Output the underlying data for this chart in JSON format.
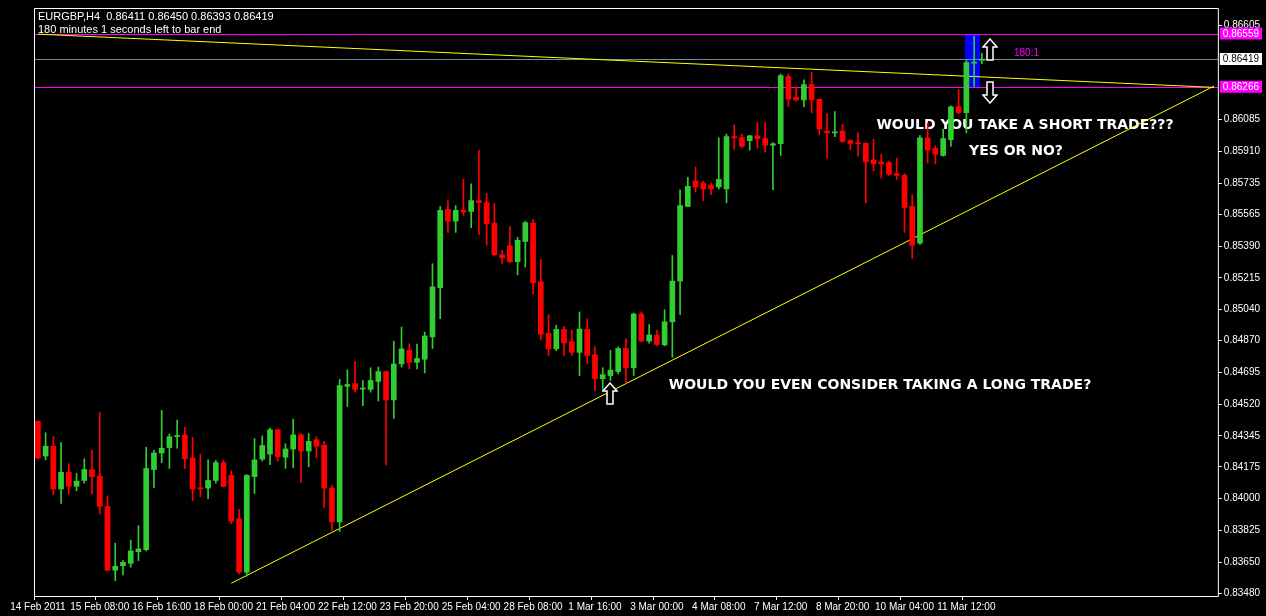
{
  "chart_data": {
    "type": "candlestick",
    "title": "EURGBP,H4  0.86411 0.86450 0.86393 0.86419",
    "subtitle": "180 minutes 1 seconds left to bar end",
    "categories": [
      "14 Feb 2011",
      null,
      null,
      null,
      null,
      null,
      null,
      null,
      "15 Feb 08:00",
      null,
      null,
      null,
      null,
      null,
      null,
      null,
      "16 Feb 16:00",
      null,
      null,
      null,
      null,
      null,
      null,
      null,
      "18 Feb 00:00",
      null,
      null,
      null,
      null,
      null,
      null,
      null,
      "21 Feb 04:00",
      null,
      null,
      null,
      null,
      null,
      null,
      null,
      "22 Feb 12:00",
      null,
      null,
      null,
      null,
      null,
      null,
      null,
      "23 Feb 20:00",
      null,
      null,
      null,
      null,
      null,
      null,
      null,
      "25 Feb 04:00",
      null,
      null,
      null,
      null,
      null,
      null,
      null,
      "28 Feb 08:00",
      null,
      null,
      null,
      null,
      null,
      null,
      null,
      "1 Mar 16:00",
      null,
      null,
      null,
      null,
      null,
      null,
      null,
      "3 Mar 00:00",
      null,
      null,
      null,
      null,
      null,
      null,
      null,
      "4 Mar 08:00",
      null,
      null,
      null,
      null,
      null,
      null,
      null,
      "7 Mar 12:00",
      null,
      null,
      null,
      null,
      null,
      null,
      null,
      "8 Mar 20:00",
      null,
      null,
      null,
      null,
      null,
      null,
      null,
      "10 Mar 04:00",
      null,
      null,
      null,
      null,
      null,
      null,
      null,
      "11 Mar 12:00",
      null,
      null,
      null,
      null,
      null,
      null,
      null,
      null,
      null,
      null,
      null,
      null,
      null,
      null,
      null,
      null,
      null,
      null,
      null,
      null,
      null,
      null,
      null,
      null,
      null,
      null,
      null,
      null,
      null,
      null,
      null,
      null
    ],
    "ohlc": [
      [
        0.84426,
        0.84426,
        0.84219,
        0.84224
      ],
      [
        0.84234,
        0.84362,
        0.84213,
        0.84288
      ],
      [
        0.84288,
        0.84341,
        0.84021,
        0.84053
      ],
      [
        0.84053,
        0.84309,
        0.83974,
        0.84145
      ],
      [
        0.84145,
        0.84192,
        0.84026,
        0.84068
      ],
      [
        0.84068,
        0.84138,
        0.84043,
        0.84096
      ],
      [
        0.841,
        0.84219,
        0.84085,
        0.8416
      ],
      [
        0.8416,
        0.84266,
        0.84026,
        0.84121
      ],
      [
        0.84124,
        0.84475,
        0.83915,
        0.83957
      ],
      [
        0.83957,
        0.84015,
        0.83602,
        0.83606
      ],
      [
        0.83606,
        0.83755,
        0.83548,
        0.83627
      ],
      [
        0.83631,
        0.83659,
        0.8358,
        0.83649
      ],
      [
        0.83644,
        0.83772,
        0.83623,
        0.83712
      ],
      [
        0.83708,
        0.83851,
        0.83659,
        0.83723
      ],
      [
        0.83719,
        0.84283,
        0.83712,
        0.84166
      ],
      [
        0.8416,
        0.84266,
        0.8406,
        0.84251
      ],
      [
        0.84251,
        0.84486,
        0.84198,
        0.84277
      ],
      [
        0.84281,
        0.84356,
        0.84166,
        0.84341
      ],
      [
        0.84341,
        0.84432,
        0.84277,
        0.84347
      ],
      [
        0.84351,
        0.84394,
        0.84166,
        0.84219
      ],
      [
        0.84224,
        0.84337,
        0.83989,
        0.84053
      ],
      [
        0.8406,
        0.84245,
        0.84011,
        0.84053
      ],
      [
        0.84058,
        0.84213,
        0.84,
        0.841
      ],
      [
        0.841,
        0.84211,
        0.84085,
        0.84198
      ],
      [
        0.84198,
        0.84211,
        0.84064,
        0.84068
      ],
      [
        0.84128,
        0.84153,
        0.83862,
        0.83876
      ],
      [
        0.83889,
        0.8394,
        0.83585,
        0.83595
      ],
      [
        0.83595,
        0.84132,
        0.83574,
        0.84128
      ],
      [
        0.84121,
        0.8433,
        0.84028,
        0.84213
      ],
      [
        0.84217,
        0.84345,
        0.84207,
        0.84292
      ],
      [
        0.84245,
        0.84388,
        0.84187,
        0.84379
      ],
      [
        0.84379,
        0.84383,
        0.84207,
        0.8423
      ],
      [
        0.84228,
        0.84302,
        0.84166,
        0.84273
      ],
      [
        0.84273,
        0.84437,
        0.8417,
        0.84351
      ],
      [
        0.84351,
        0.84358,
        0.84089,
        0.84262
      ],
      [
        0.84262,
        0.84358,
        0.84175,
        0.84315
      ],
      [
        0.84324,
        0.84341,
        0.84224,
        0.84288
      ],
      [
        0.84294,
        0.84315,
        0.83951,
        0.84058
      ],
      [
        0.84058,
        0.84074,
        0.83825,
        0.83872
      ],
      [
        0.83872,
        0.84656,
        0.83819,
        0.84622
      ],
      [
        0.84618,
        0.84709,
        0.84507,
        0.84628
      ],
      [
        0.84633,
        0.84756,
        0.84586,
        0.84601
      ],
      [
        0.84603,
        0.8465,
        0.84511,
        0.84607
      ],
      [
        0.84601,
        0.8472,
        0.84586,
        0.8465
      ],
      [
        0.84645,
        0.84724,
        0.84537,
        0.84699
      ],
      [
        0.84699,
        0.84703,
        0.84185,
        0.84543
      ],
      [
        0.84543,
        0.84867,
        0.84441,
        0.84741
      ],
      [
        0.84741,
        0.84944,
        0.84724,
        0.84824
      ],
      [
        0.84816,
        0.84852,
        0.84714,
        0.8475
      ],
      [
        0.8475,
        0.8485,
        0.84714,
        0.84771
      ],
      [
        0.84767,
        0.84916,
        0.84692,
        0.84895
      ],
      [
        0.8489,
        0.85293,
        0.84826,
        0.85165
      ],
      [
        0.85161,
        0.85608,
        0.8499,
        0.85587
      ],
      [
        0.85591,
        0.8564,
        0.85465,
        0.85527
      ],
      [
        0.85527,
        0.85612,
        0.85465,
        0.85587
      ],
      [
        0.85587,
        0.85757,
        0.85559,
        0.85576
      ],
      [
        0.8558,
        0.85732,
        0.85491,
        0.8564
      ],
      [
        0.8564,
        0.85917,
        0.85453,
        0.85629
      ],
      [
        0.85629,
        0.85678,
        0.85395,
        0.85512
      ],
      [
        0.85517,
        0.85625,
        0.85335,
        0.85342
      ],
      [
        0.85342,
        0.85367,
        0.85295,
        0.85325
      ],
      [
        0.85391,
        0.85497,
        0.85299,
        0.85304
      ],
      [
        0.85304,
        0.85438,
        0.85231,
        0.85421
      ],
      [
        0.85416,
        0.85527,
        0.85274,
        0.85519
      ],
      [
        0.85517,
        0.85534,
        0.85125,
        0.85188
      ],
      [
        0.85193,
        0.85316,
        0.84873,
        0.84905
      ],
      [
        0.8491,
        0.85012,
        0.84788,
        0.84824
      ],
      [
        0.84824,
        0.84954,
        0.84814,
        0.84931
      ],
      [
        0.84931,
        0.84948,
        0.84788,
        0.84856
      ],
      [
        0.84863,
        0.84927,
        0.84788,
        0.84805
      ],
      [
        0.84805,
        0.85027,
        0.84677,
        0.84933
      ],
      [
        0.84931,
        0.8499,
        0.84741,
        0.84788
      ],
      [
        0.84792,
        0.84835,
        0.84592,
        0.8466
      ],
      [
        0.8466,
        0.8472,
        0.84596,
        0.84682
      ],
      [
        0.84677,
        0.84816,
        0.8465,
        0.84707
      ],
      [
        0.84699,
        0.84835,
        0.84686,
        0.84826
      ],
      [
        0.84826,
        0.8488,
        0.84635,
        0.8472
      ],
      [
        0.8472,
        0.85022,
        0.84677,
        0.85016
      ],
      [
        0.85016,
        0.85027,
        0.84863,
        0.84867
      ],
      [
        0.84867,
        0.84958,
        0.84856,
        0.84901
      ],
      [
        0.84899,
        0.84927,
        0.84841,
        0.84848
      ],
      [
        0.84846,
        0.85039,
        0.84841,
        0.84973
      ],
      [
        0.84973,
        0.85338,
        0.84777,
        0.85197
      ],
      [
        0.85197,
        0.857,
        0.85012,
        0.85612
      ],
      [
        0.85608,
        0.85768,
        0.85608,
        0.85719
      ],
      [
        0.85747,
        0.85825,
        0.85687,
        0.85715
      ],
      [
        0.85736,
        0.85747,
        0.8564,
        0.85704
      ],
      [
        0.85725,
        0.85736,
        0.85672,
        0.85704
      ],
      [
        0.85715,
        0.85985,
        0.85704,
        0.85757
      ],
      [
        0.85704,
        0.86006,
        0.85629,
        0.85992
      ],
      [
        0.85992,
        0.86055,
        0.85923,
        0.85985
      ],
      [
        0.85987,
        0.86006,
        0.85932,
        0.85938
      ],
      [
        0.8597,
        0.85999,
        0.85917,
        0.85996
      ],
      [
        0.85996,
        0.8607,
        0.85928,
        0.85981
      ],
      [
        0.85981,
        0.8607,
        0.85906,
        0.85945
      ],
      [
        0.85945,
        0.8596,
        0.857,
        0.85953
      ],
      [
        0.85953,
        0.86337,
        0.85889,
        0.86328
      ],
      [
        0.86322,
        0.86337,
        0.86158,
        0.86198
      ],
      [
        0.86209,
        0.86268,
        0.86187,
        0.86194
      ],
      [
        0.86194,
        0.86305,
        0.86156,
        0.86279
      ],
      [
        0.86279,
        0.86347,
        0.86124,
        0.86194
      ],
      [
        0.86198,
        0.86198,
        0.86002,
        0.86034
      ],
      [
        0.86023,
        0.86119,
        0.85874,
        0.86013
      ],
      [
        0.86013,
        0.8613,
        0.85992,
        0.86019
      ],
      [
        0.86023,
        0.8606,
        0.8596,
        0.85966
      ],
      [
        0.8597,
        0.85975,
        0.85921,
        0.85955
      ],
      [
        0.8596,
        0.86013,
        0.85885,
        0.85953
      ],
      [
        0.85955,
        0.8596,
        0.85629,
        0.85853
      ],
      [
        0.85864,
        0.85977,
        0.85804,
        0.85842
      ],
      [
        0.85853,
        0.85896,
        0.85764,
        0.85842
      ],
      [
        0.85849,
        0.85857,
        0.85779,
        0.85785
      ],
      [
        0.85789,
        0.85874,
        0.85757,
        0.85779
      ],
      [
        0.85779,
        0.85789,
        0.85465,
        0.85602
      ],
      [
        0.85608,
        0.85672,
        0.85321,
        0.85395
      ],
      [
        0.85406,
        0.85998,
        0.85399,
        0.85985
      ],
      [
        0.85985,
        0.86066,
        0.85847,
        0.85917
      ],
      [
        0.85928,
        0.85942,
        0.85842,
        0.85896
      ],
      [
        0.85889,
        0.86034,
        0.85885,
        0.85981
      ],
      [
        0.85975,
        0.86162,
        0.85938,
        0.86156
      ],
      [
        0.86158,
        0.86251,
        0.86119,
        0.86124
      ],
      [
        0.86124,
        0.86411,
        0.86013,
        0.864
      ],
      [
        0.86396,
        0.86545,
        0.86268,
        0.86403
      ],
      [
        0.86411,
        0.8645,
        0.86393,
        0.86419
      ],
      null,
      null,
      null,
      null,
      null,
      null,
      null,
      null,
      null,
      null,
      null,
      null,
      null,
      null,
      null,
      null,
      null,
      null,
      null,
      null,
      null,
      null,
      null,
      null,
      null,
      null,
      null,
      null,
      null,
      null
    ],
    "colors": [
      "#ff0000",
      "#32cd32",
      "#ff0000",
      "#32cd32",
      "#ff0000",
      "#32cd32",
      "#32cd32",
      "#ff0000",
      "#ff0000",
      "#ff0000",
      "#32cd32",
      "#32cd32",
      "#32cd32",
      "#32cd32",
      "#32cd32",
      "#32cd32",
      "#32cd32",
      "#32cd32",
      "#32cd32",
      "#ff0000",
      "#ff0000",
      "#ff0000",
      "#32cd32",
      "#32cd32",
      "#ff0000",
      "#ff0000",
      "#ff0000",
      "#32cd32",
      "#32cd32",
      "#32cd32",
      "#32cd32",
      "#ff0000",
      "#32cd32",
      "#32cd32",
      "#ff0000",
      "#32cd32",
      "#ff0000",
      "#ff0000",
      "#ff0000",
      "#32cd32",
      "#32cd32",
      "#ff0000",
      "#32cd32",
      "#32cd32",
      "#32cd32",
      "#ff0000",
      "#32cd32",
      "#32cd32",
      "#ff0000",
      "#32cd32",
      "#32cd32",
      "#32cd32",
      "#32cd32",
      "#ff0000",
      "#32cd32",
      "#ff0000",
      "#32cd32",
      "#ff0000",
      "#ff0000",
      "#ff0000",
      "#ff0000",
      "#ff0000",
      "#32cd32",
      "#32cd32",
      "#ff0000",
      "#ff0000",
      "#ff0000",
      "#32cd32",
      "#ff0000",
      "#ff0000",
      "#32cd32",
      "#ff0000",
      "#ff0000",
      "#32cd32",
      "#32cd32",
      "#32cd32",
      "#ff0000",
      "#32cd32",
      "#ff0000",
      "#32cd32",
      "#ff0000",
      "#32cd32",
      "#32cd32",
      "#32cd32",
      "#32cd32",
      "#ff0000",
      "#ff0000",
      "#ff0000",
      "#32cd32",
      "#32cd32",
      "#ff0000",
      "#ff0000",
      "#32cd32",
      "#ff0000",
      "#ff0000",
      "#32cd32",
      "#32cd32",
      "#ff0000",
      "#ff0000",
      "#32cd32",
      "#ff0000",
      "#ff0000",
      "#ff0000",
      "#32cd32",
      "#ff0000",
      "#ff0000",
      "#ff0000",
      "#ff0000",
      "#ff0000",
      "#ff0000",
      "#ff0000",
      "#ff0000",
      "#ff0000",
      "#ff0000",
      "#32cd32",
      "#ff0000",
      "#ff0000",
      "#32cd32",
      "#32cd32",
      "#ff0000",
      "#32cd32",
      "#32cd32",
      "#32cd32",
      null,
      null,
      null,
      null,
      null,
      null,
      null,
      null,
      null,
      null,
      null,
      null,
      null,
      null,
      null,
      null,
      null,
      null,
      null,
      null,
      null,
      null,
      null,
      null,
      null,
      null,
      null,
      null,
      null,
      null
    ],
    "series": [
      {
        "type": "line",
        "color": "#ffff00",
        "values": [
          0.86556,
          null,
          null,
          null,
          null,
          null,
          null,
          null,
          null,
          null,
          null,
          null,
          null,
          null,
          null,
          null,
          null,
          null,
          null,
          null,
          null,
          null,
          null,
          null,
          null,
          null,
          null,
          null,
          null,
          null,
          null,
          null,
          null,
          null,
          null,
          null,
          null,
          null,
          null,
          null,
          null,
          null,
          null,
          null,
          null,
          null,
          null,
          null,
          null,
          null,
          null,
          null,
          null,
          null,
          null,
          null,
          null,
          null,
          null,
          null,
          null,
          null,
          null,
          null,
          null,
          null,
          null,
          null,
          null,
          null,
          null,
          null,
          null,
          null,
          null,
          null,
          null,
          null,
          null,
          null,
          null,
          null,
          null,
          null,
          null,
          null,
          null,
          null,
          null,
          null,
          null,
          null,
          null,
          null,
          null,
          null,
          null,
          null,
          null,
          null,
          null,
          null,
          null,
          null,
          null,
          null,
          null,
          null,
          null,
          null,
          null,
          null,
          null,
          null,
          null,
          null,
          null,
          null,
          null,
          null,
          null,
          null,
          null,
          null,
          null,
          null,
          null,
          null,
          null,
          null,
          null,
          null,
          null,
          null,
          null,
          null,
          null,
          null,
          null,
          null,
          null,
          null,
          null,
          null,
          null,
          null,
          null,
          null,
          null,
          null,
          null,
          null,
          0.86263
        ]
      },
      {
        "type": "line",
        "color": "#ffff00",
        "values": [
          null,
          null,
          null,
          null,
          null,
          null,
          null,
          null,
          null,
          null,
          null,
          null,
          null,
          null,
          null,
          null,
          null,
          null,
          null,
          null,
          null,
          null,
          null,
          null,
          null,
          0.83534,
          null,
          null,
          null,
          null,
          null,
          null,
          null,
          null,
          null,
          null,
          null,
          null,
          null,
          null,
          null,
          null,
          null,
          null,
          null,
          null,
          null,
          null,
          null,
          null,
          null,
          null,
          null,
          null,
          null,
          null,
          null,
          null,
          null,
          null,
          null,
          null,
          null,
          null,
          null,
          null,
          null,
          null,
          null,
          null,
          null,
          null,
          null,
          null,
          null,
          null,
          null,
          null,
          null,
          null,
          null,
          null,
          null,
          null,
          null,
          null,
          null,
          null,
          null,
          null,
          null,
          null,
          null,
          null,
          null,
          null,
          null,
          null,
          null,
          null,
          null,
          null,
          null,
          null,
          null,
          null,
          null,
          null,
          null,
          null,
          null,
          null,
          null,
          null,
          null,
          null,
          null,
          null,
          null,
          null,
          null,
          null,
          null,
          null,
          null,
          null,
          null,
          null,
          null,
          null,
          null,
          null,
          null,
          null,
          null,
          null,
          null,
          null,
          null,
          null,
          null,
          null,
          null,
          null,
          null,
          null,
          null,
          null,
          null,
          null,
          null,
          null,
          0.8627
        ]
      }
    ],
    "ref_lines": [
      {
        "axis": "y",
        "value": 0.86559,
        "label": "0.86559",
        "color": "#ff00ff"
      },
      {
        "axis": "y",
        "value": 0.86419,
        "label": "0.86419",
        "color": "#778899"
      },
      {
        "axis": "y",
        "value": 0.86266,
        "label": "0.86266",
        "color": "#ff00ff"
      }
    ],
    "annotations": [
      "WOULD YOU TAKE A SHORT TRADE???",
      "YES OR NO?",
      "WOULD YOU EVEN CONSIDER TAKING A LONG TRADE?",
      "180:1"
    ],
    "ylim": [
      0.83464,
      0.867
    ],
    "yticks": [
      0.86605,
      0.86085,
      {
        "value": 0.8591,
        "label": "0.85910"
      },
      0.85735,
      0.85565,
      {
        "value": 0.8539,
        "label": "0.85390"
      },
      0.85215,
      {
        "value": 0.8504,
        "label": "0.85040"
      },
      {
        "value": 0.8487,
        "label": "0.84870"
      },
      0.84695,
      {
        "value": 0.8452,
        "label": "0.84520"
      },
      0.84345,
      0.84175,
      {
        "value": 0.84,
        "label": "0.84000"
      },
      0.83825,
      {
        "value": 0.8365,
        "label": "0.83650"
      },
      {
        "value": 0.8348,
        "label": "0.83480"
      }
    ],
    "legend": false
  }
}
